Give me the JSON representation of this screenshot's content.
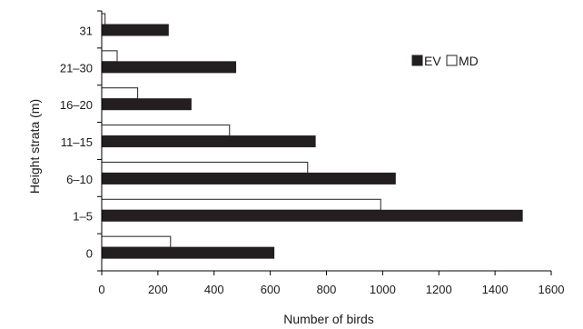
{
  "chart_data": {
    "type": "bar",
    "orientation": "horizontal",
    "categories": [
      "31",
      "21–30",
      "16–20",
      "11–15",
      "6–10",
      "1–5",
      "0"
    ],
    "series": [
      {
        "name": "EV",
        "values": [
          237,
          477,
          318,
          760,
          1045,
          1497,
          613
        ],
        "color": "#231f20"
      },
      {
        "name": "MD",
        "values": [
          12,
          55,
          128,
          455,
          733,
          993,
          245
        ],
        "color": "#ffffff"
      }
    ],
    "xlabel": "Number of birds",
    "ylabel": "Height strata (m)",
    "xlim": [
      0,
      1600
    ],
    "xticks": [
      0,
      200,
      400,
      600,
      800,
      1000,
      1200,
      1400,
      1600
    ],
    "grid": false,
    "legend_position": "top-right"
  }
}
